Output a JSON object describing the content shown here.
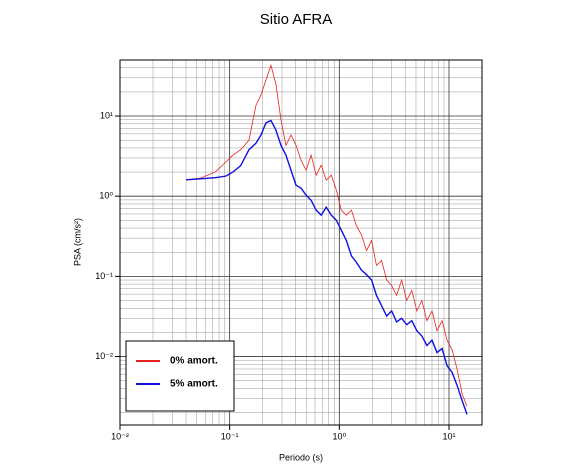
{
  "chart_data": {
    "type": "line",
    "title": "Sitio AFRA",
    "xlabel": "Periodo (s)",
    "ylabel": "PSA (cm/s²)",
    "log_x": true,
    "log_y": true,
    "grid": true,
    "legend": "lower left",
    "xlim": [
      0.01,
      20
    ],
    "ylim": [
      0.0014,
      50
    ],
    "xticks": [
      {
        "value": 0.01,
        "label": "10⁻²"
      },
      {
        "value": 0.1,
        "label": "10⁻¹"
      },
      {
        "value": 1,
        "label": "10⁰"
      },
      {
        "value": 10,
        "label": "10¹"
      }
    ],
    "yticks": [
      {
        "value": 0.01,
        "label": "10⁻²"
      },
      {
        "value": 0.1,
        "label": "10⁻¹"
      },
      {
        "value": 1,
        "label": "10⁰"
      },
      {
        "value": 10,
        "label": "10¹"
      }
    ],
    "x": [
      0.04,
      0.054,
      0.074,
      0.092,
      0.107,
      0.126,
      0.15,
      0.174,
      0.193,
      0.214,
      0.238,
      0.264,
      0.294,
      0.326,
      0.363,
      0.403,
      0.448,
      0.498,
      0.553,
      0.615,
      0.684,
      0.76,
      0.845,
      0.94,
      1.04,
      1.16,
      1.29,
      1.43,
      1.59,
      1.77,
      1.97,
      2.18,
      2.43,
      2.7,
      3.0,
      3.33,
      3.7,
      4.12,
      4.58,
      5.09,
      5.66,
      6.29,
      7.0,
      7.78,
      8.65,
      9.6,
      10.7,
      11.9,
      13.2,
      14.6
    ],
    "series": [
      {
        "name": "0% amort.",
        "color": "#e8231f",
        "width": 0.8,
        "values": [
          1.6,
          1.68,
          2.0,
          2.66,
          3.25,
          3.8,
          5.0,
          13.7,
          18.3,
          28,
          43,
          25,
          8.9,
          4.3,
          5.8,
          4.3,
          2.8,
          2.1,
          3.25,
          1.83,
          2.44,
          1.58,
          1.83,
          1.19,
          0.67,
          0.58,
          0.67,
          0.43,
          0.33,
          0.21,
          0.28,
          0.137,
          0.158,
          0.09,
          0.077,
          0.058,
          0.09,
          0.05,
          0.067,
          0.037,
          0.05,
          0.028,
          0.037,
          0.021,
          0.028,
          0.016,
          0.012,
          0.0068,
          0.0034,
          0.0024
        ]
      },
      {
        "name": "5% amort.",
        "color": "#1010e0",
        "width": 1.4,
        "values": [
          1.6,
          1.65,
          1.7,
          1.78,
          2.0,
          2.4,
          3.8,
          4.6,
          5.8,
          8.2,
          8.8,
          6.7,
          4.3,
          3.25,
          2.1,
          1.37,
          1.26,
          1.03,
          0.89,
          0.67,
          0.58,
          0.73,
          0.58,
          0.5,
          0.38,
          0.28,
          0.18,
          0.15,
          0.12,
          0.105,
          0.09,
          0.058,
          0.043,
          0.032,
          0.037,
          0.027,
          0.03,
          0.025,
          0.028,
          0.021,
          0.018,
          0.0137,
          0.016,
          0.0112,
          0.0126,
          0.0077,
          0.0063,
          0.0043,
          0.0028,
          0.0019
        ]
      }
    ]
  }
}
